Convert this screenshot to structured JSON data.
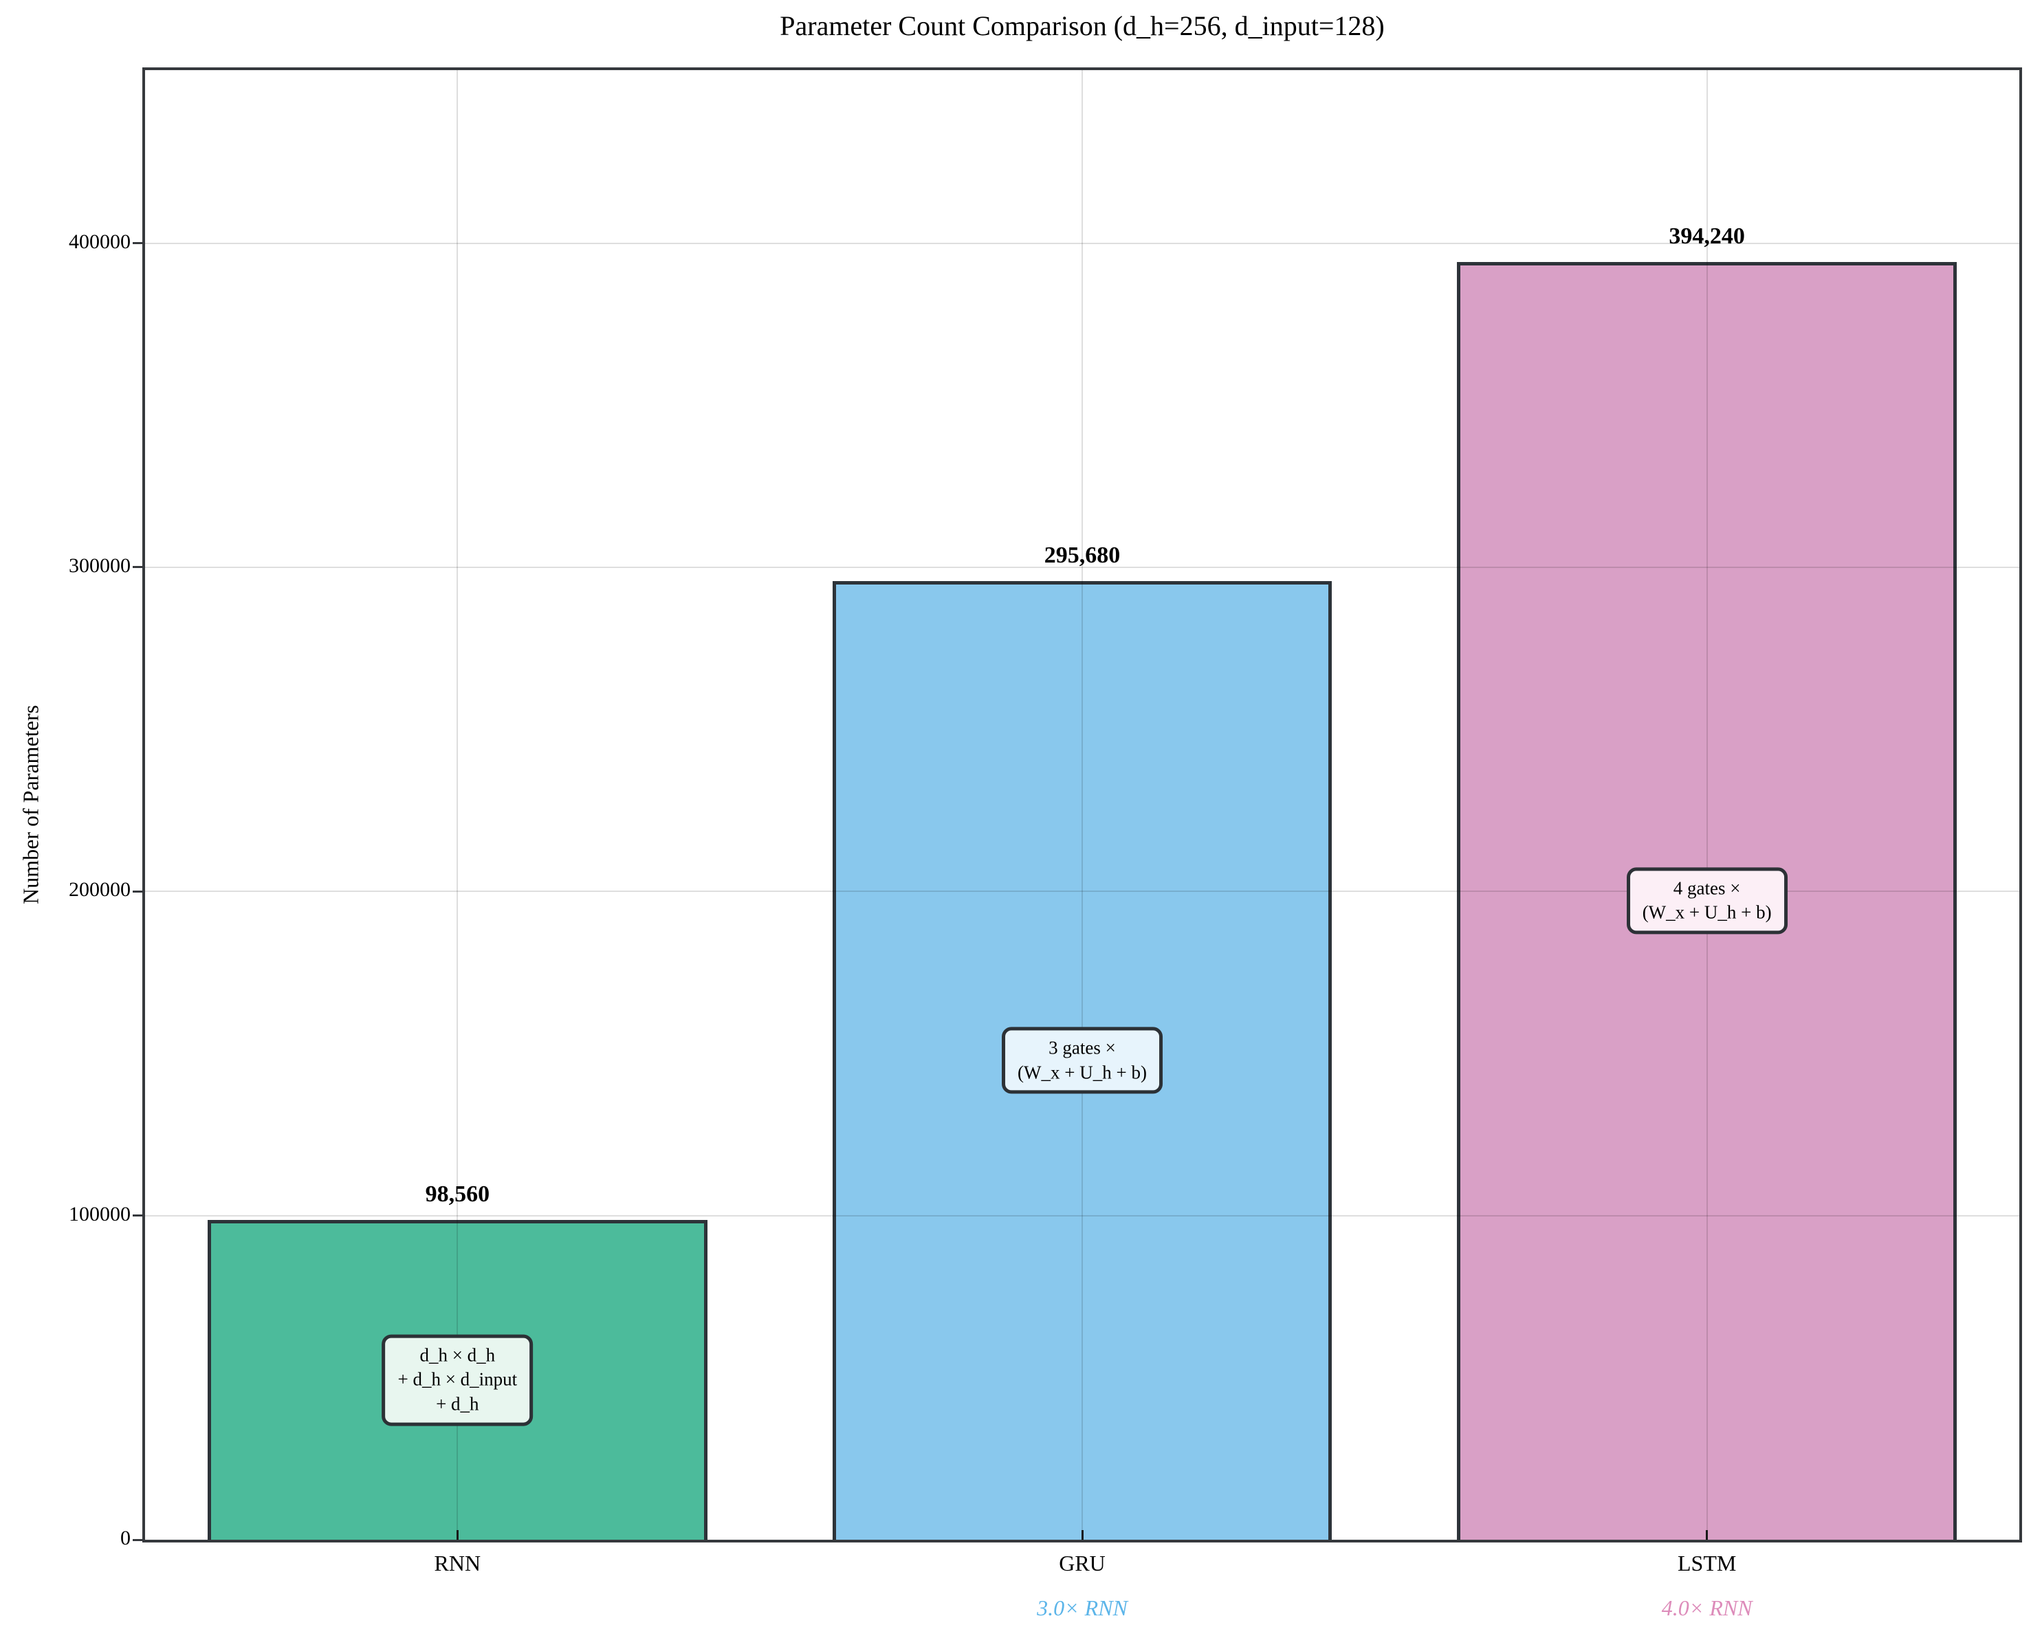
{
  "title": "Parameter Count Comparison (d_h=256, d_input=128)",
  "chart_data": {
    "type": "bar",
    "title": "Parameter Count Comparison (d_h=256, d_input=128)",
    "xlabel": "",
    "ylabel": "Number of Parameters",
    "categories": [
      "RNN",
      "GRU",
      "LSTM"
    ],
    "values": [
      98560,
      295680,
      394240
    ],
    "value_labels": [
      "98,560",
      "295,680",
      "394,240"
    ],
    "bar_colors": [
      "#4cbb9b",
      "#89c8ed",
      "#d9a0c6"
    ],
    "bar_edge_color": "#2d3339",
    "annotations": [
      {
        "lines": [
          "d_h × d_h",
          "+ d_h × d_input",
          "+ d_h"
        ],
        "bg": "#e8f6ef"
      },
      {
        "lines": [
          "3 gates ×",
          "(W_x + U_h + b)"
        ],
        "bg": "#e7f4fc"
      },
      {
        "lines": [
          "4 gates ×",
          "(W_x + U_h + b)"
        ],
        "bg": "#fceff6"
      }
    ],
    "multipliers": [
      "",
      "3.0× RNN",
      "4.0× RNN"
    ],
    "multiplier_colors": [
      "",
      "#5cb5e9",
      "#dd8cba"
    ],
    "yticks": [
      0,
      100000,
      200000,
      300000,
      400000
    ],
    "ytick_labels": [
      "0",
      "100000",
      "200000",
      "300000",
      "400000"
    ],
    "ylim": [
      0,
      453376
    ],
    "grid": true,
    "grid_over_bars": true,
    "legend_position": "none",
    "bar_width_fraction": 0.8
  }
}
